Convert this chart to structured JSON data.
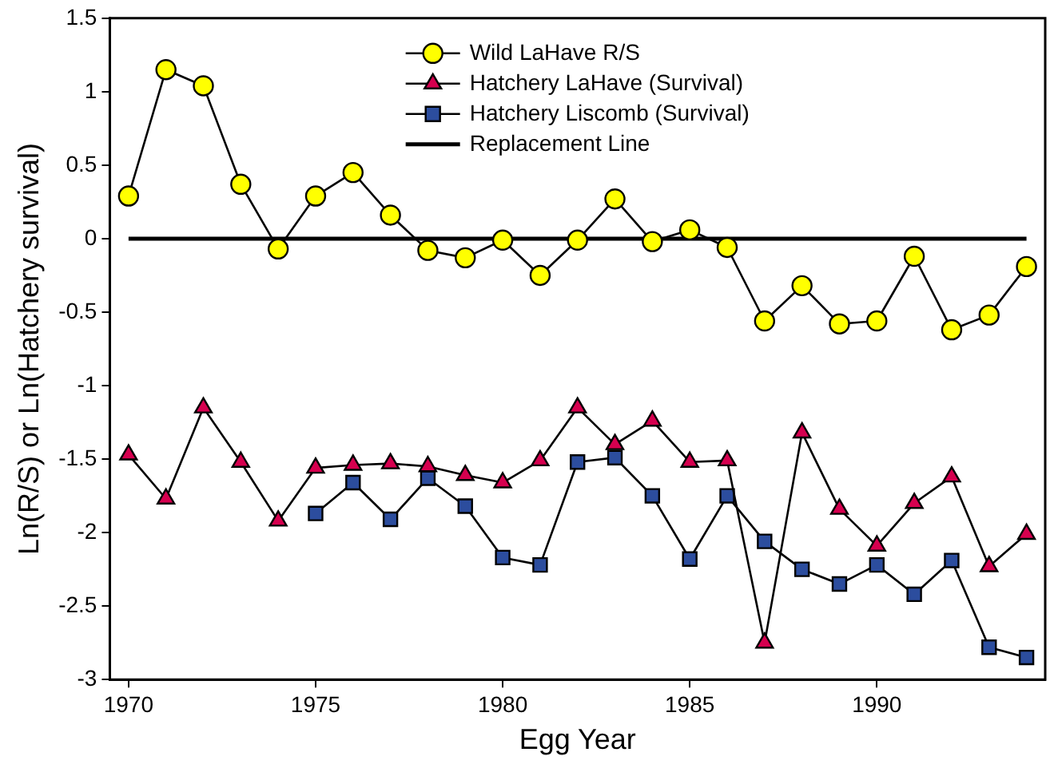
{
  "chart_data": {
    "type": "line",
    "xlabel": "Egg Year",
    "ylabel": "Ln(R/S) or Ln(Hatchery survival)",
    "x": [
      1970,
      1971,
      1972,
      1973,
      1974,
      1975,
      1976,
      1977,
      1978,
      1979,
      1980,
      1981,
      1982,
      1983,
      1984,
      1985,
      1986,
      1987,
      1988,
      1989,
      1990,
      1991,
      1992,
      1993,
      1994
    ],
    "series": [
      {
        "name": "Wild LaHave R/S",
        "color": "#ffff00",
        "marker": "circle",
        "values": [
          0.29,
          1.15,
          1.04,
          0.37,
          -0.07,
          0.29,
          0.45,
          0.16,
          -0.08,
          -0.13,
          -0.01,
          -0.25,
          -0.01,
          0.27,
          -0.02,
          0.06,
          -0.06,
          -0.56,
          -0.32,
          -0.58,
          -0.56,
          -0.12,
          -0.62,
          -0.52,
          -0.19
        ]
      },
      {
        "name": "Hatchery LaHave (Survival)",
        "color": "#d6004f",
        "marker": "triangle",
        "values": [
          -1.47,
          -1.77,
          -1.15,
          -1.52,
          -1.92,
          -1.56,
          -1.54,
          -1.53,
          -1.55,
          -1.61,
          -1.66,
          -1.51,
          -1.15,
          -1.4,
          -1.24,
          -1.52,
          -1.51,
          -2.75,
          -1.32,
          -1.84,
          -2.09,
          -1.8,
          -1.62,
          -2.23,
          -2.01
        ]
      },
      {
        "name": "Hatchery Liscomb (Survival)",
        "color": "#2c4d9e",
        "marker": "square",
        "values": [
          null,
          null,
          null,
          null,
          null,
          -1.87,
          -1.66,
          -1.91,
          -1.63,
          -1.82,
          -2.17,
          -2.22,
          -1.52,
          -1.49,
          -1.75,
          -2.18,
          -1.75,
          -2.06,
          -2.25,
          -2.35,
          -2.22,
          -2.42,
          -2.19,
          -2.78,
          -2.85
        ]
      },
      {
        "name": "Replacement Line",
        "color": "#000000",
        "marker": "none",
        "values": [
          0,
          0,
          0,
          0,
          0,
          0,
          0,
          0,
          0,
          0,
          0,
          0,
          0,
          0,
          0,
          0,
          0,
          0,
          0,
          0,
          0,
          0,
          0,
          0,
          0
        ]
      }
    ],
    "xlim": [
      1969.5,
      1994.5
    ],
    "xticks": [
      1970,
      1975,
      1980,
      1985,
      1990
    ],
    "ylim": [
      -3,
      1.5
    ],
    "yticks": [
      -3,
      -2.5,
      -2,
      -1.5,
      -1,
      -0.5,
      0,
      0.5,
      1,
      1.5
    ],
    "grid": false,
    "legend": "top"
  }
}
